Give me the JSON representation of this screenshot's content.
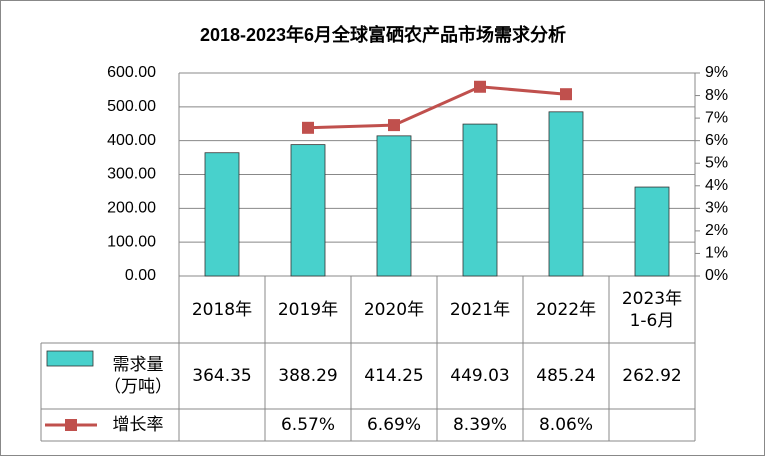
{
  "chart_data": {
    "type": "bar-line",
    "title": "2018-2023年6月全球富硒农产品市场需求分析",
    "categories": [
      "2018年",
      "2019年",
      "2020年",
      "2021年",
      "2022年",
      "2023年\n1-6月"
    ],
    "series": [
      {
        "name": "需求量\n（万吨）",
        "type": "bar",
        "color": "#48d1cc",
        "values": [
          364.35,
          388.29,
          414.25,
          449.03,
          485.24,
          262.92
        ]
      },
      {
        "name": "增长率",
        "type": "line",
        "axis": "y2",
        "color": "#c0504d",
        "values": [
          null,
          6.57,
          6.69,
          8.39,
          8.06,
          null
        ],
        "value_labels": [
          null,
          "6.57%",
          "6.69%",
          "8.39%",
          "8.06%",
          null
        ]
      }
    ],
    "ylim": [
      0,
      600
    ],
    "yticks": [
      {
        "value": 0,
        "label": "0.00"
      },
      {
        "value": 100,
        "label": "100.00"
      },
      {
        "value": 200,
        "label": "200.00"
      },
      {
        "value": 300,
        "label": "300.00"
      },
      {
        "value": 400,
        "label": "400.00"
      },
      {
        "value": 500,
        "label": "500.00"
      },
      {
        "value": 600,
        "label": "600.00"
      }
    ],
    "y2lim": [
      0,
      9
    ],
    "y2ticks": [
      {
        "value": 0,
        "label": "0%"
      },
      {
        "value": 1,
        "label": "1%"
      },
      {
        "value": 2,
        "label": "2%"
      },
      {
        "value": 3,
        "label": "3%"
      },
      {
        "value": 4,
        "label": "4%"
      },
      {
        "value": 5,
        "label": "5%"
      },
      {
        "value": 6,
        "label": "6%"
      },
      {
        "value": 7,
        "label": "7%"
      },
      {
        "value": 8,
        "label": "8%"
      },
      {
        "value": 9,
        "label": "9%"
      }
    ],
    "grid": true
  }
}
